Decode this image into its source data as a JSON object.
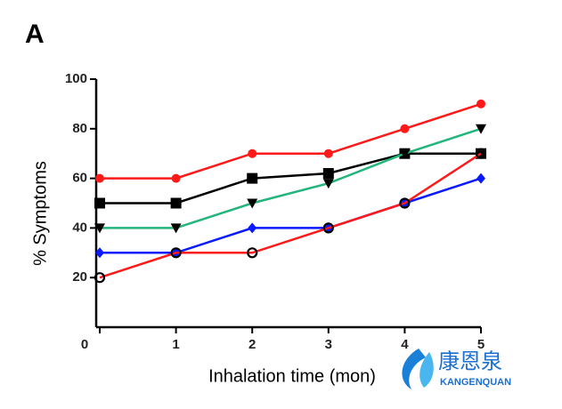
{
  "chart_data": {
    "type": "line",
    "panel_label": "A",
    "xlabel": "Inhalation time (mon)",
    "ylabel": "% Symptoms",
    "x": [
      0,
      1,
      2,
      3,
      4,
      5
    ],
    "xlim": [
      0,
      5
    ],
    "xticks": [
      0,
      1,
      2,
      3,
      4,
      5
    ],
    "ylim": [
      0,
      100
    ],
    "yticks": [
      20,
      40,
      60,
      80,
      100
    ],
    "series": [
      {
        "color": "#ff1a1a",
        "marker": "circle",
        "marker_color": "#ff1a1a",
        "values": [
          60,
          60,
          70,
          70,
          80,
          90
        ]
      },
      {
        "color": "#000000",
        "marker": "square",
        "marker_color": "#000000",
        "values": [
          50,
          50,
          60,
          62,
          70,
          70
        ]
      },
      {
        "color": "#22b57c",
        "marker": "triangle-down",
        "marker_color": "#000000",
        "values": [
          40,
          40,
          50,
          58,
          70,
          80
        ]
      },
      {
        "color": "#0a1aff",
        "marker": "diamond",
        "marker_color": "#0a1aff",
        "values": [
          30,
          30,
          40,
          40,
          50,
          60
        ]
      },
      {
        "color": "#ff1a1a",
        "marker": "circle-open",
        "marker_color": "#000000",
        "values": [
          20,
          30,
          30,
          40,
          50,
          70
        ]
      }
    ],
    "watermark": {
      "text": "康恩泉",
      "subtext": "KANGENQUAN"
    }
  }
}
